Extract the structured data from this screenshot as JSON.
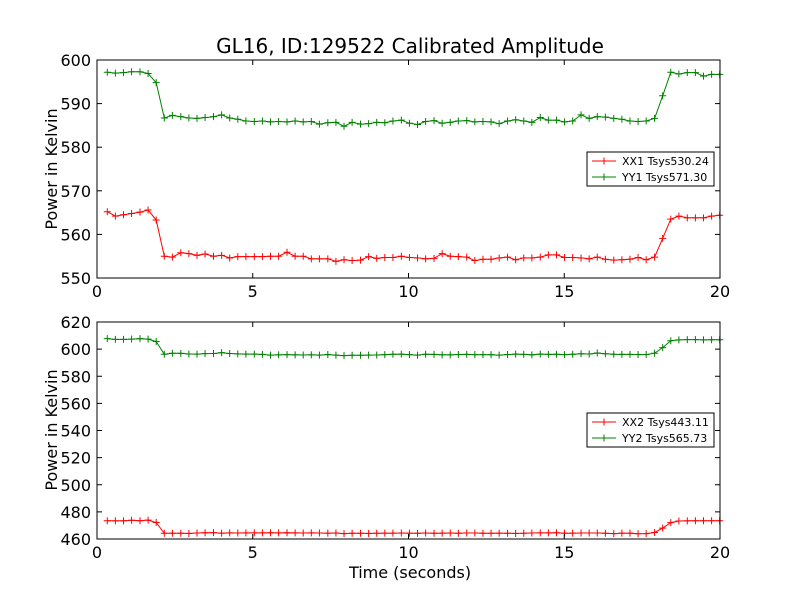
{
  "chart_data": [
    {
      "type": "line",
      "title": "GL16, ID:129522 Calibrated Amplitude",
      "xlabel": "",
      "ylabel": "Power in Kelvin",
      "xlim": [
        0,
        20
      ],
      "ylim": [
        550,
        600
      ],
      "xticks": [
        0,
        5,
        10,
        15,
        20
      ],
      "yticks": [
        550,
        560,
        570,
        580,
        590,
        600
      ],
      "grid": false,
      "legend": "center-right",
      "x": [
        0.33,
        0.59,
        0.85,
        1.11,
        1.38,
        1.64,
        1.9,
        2.16,
        2.42,
        2.69,
        2.95,
        3.21,
        3.47,
        3.74,
        4.0,
        4.26,
        4.52,
        4.78,
        5.05,
        5.31,
        5.57,
        5.83,
        6.1,
        6.36,
        6.62,
        6.88,
        7.14,
        7.41,
        7.67,
        7.93,
        8.19,
        8.46,
        8.72,
        8.98,
        9.24,
        9.5,
        9.77,
        10.03,
        10.29,
        10.55,
        10.82,
        11.08,
        11.34,
        11.6,
        11.87,
        12.13,
        12.39,
        12.65,
        12.91,
        13.18,
        13.44,
        13.7,
        13.96,
        14.23,
        14.49,
        14.75,
        15.01,
        15.27,
        15.54,
        15.8,
        16.06,
        16.32,
        16.59,
        16.85,
        17.11,
        17.37,
        17.63,
        17.9,
        18.16,
        18.42,
        18.68,
        18.95,
        19.21,
        19.47,
        19.73,
        19.99
      ],
      "series": [
        {
          "name": "XX1 Tsys530.24",
          "color": "#ff0000",
          "values": [
            565.2,
            564.2,
            564.5,
            564.8,
            565.1,
            565.6,
            563.3,
            555.0,
            554.8,
            555.8,
            555.6,
            555.2,
            555.5,
            555.0,
            555.2,
            554.6,
            554.9,
            554.9,
            554.9,
            554.9,
            555.0,
            555.0,
            555.9,
            555.0,
            555.0,
            554.4,
            554.4,
            554.4,
            553.8,
            554.2,
            554.0,
            554.1,
            554.9,
            554.5,
            554.7,
            554.7,
            555.0,
            554.7,
            554.6,
            554.4,
            554.5,
            555.6,
            555.0,
            554.9,
            554.8,
            554.0,
            554.3,
            554.3,
            554.6,
            554.8,
            554.2,
            554.6,
            554.6,
            554.8,
            555.3,
            555.3,
            554.7,
            554.7,
            554.6,
            554.4,
            554.8,
            554.3,
            554.1,
            554.2,
            554.3,
            554.7,
            554.2,
            554.8,
            559.1,
            563.5,
            564.2,
            563.8,
            563.8,
            563.8,
            564.2,
            564.4
          ]
        },
        {
          "name": "YY1 Tsys571.30",
          "color": "#008000",
          "values": [
            597.2,
            597.0,
            597.1,
            597.3,
            597.3,
            596.9,
            594.8,
            586.7,
            587.3,
            587.0,
            586.7,
            586.6,
            586.8,
            587.0,
            587.4,
            586.7,
            586.4,
            586.0,
            585.9,
            586.0,
            585.8,
            585.9,
            585.8,
            586.0,
            585.8,
            585.9,
            585.3,
            585.6,
            585.7,
            584.8,
            585.7,
            585.3,
            585.4,
            585.7,
            585.6,
            586.0,
            586.2,
            585.5,
            585.2,
            585.9,
            586.1,
            585.5,
            585.7,
            586.0,
            586.1,
            585.8,
            585.9,
            585.8,
            585.4,
            586.0,
            586.3,
            586.0,
            585.7,
            586.8,
            586.2,
            586.2,
            585.8,
            586.0,
            587.4,
            586.6,
            587.0,
            586.9,
            586.6,
            586.4,
            586.0,
            585.9,
            586.0,
            586.6,
            591.8,
            597.2,
            596.8,
            597.1,
            597.1,
            596.3,
            596.7,
            596.7
          ]
        }
      ]
    },
    {
      "type": "line",
      "title": "",
      "xlabel": "Time (seconds)",
      "ylabel": "Power in Kelvin",
      "xlim": [
        0,
        20
      ],
      "ylim": [
        460,
        620
      ],
      "xticks": [
        0,
        5,
        10,
        15,
        20
      ],
      "yticks": [
        460,
        480,
        500,
        520,
        540,
        560,
        580,
        600,
        620
      ],
      "grid": false,
      "legend": "center-right",
      "x": [
        0.33,
        0.59,
        0.85,
        1.11,
        1.38,
        1.64,
        1.9,
        2.16,
        2.42,
        2.69,
        2.95,
        3.21,
        3.47,
        3.74,
        4.0,
        4.26,
        4.52,
        4.78,
        5.05,
        5.31,
        5.57,
        5.83,
        6.1,
        6.36,
        6.62,
        6.88,
        7.14,
        7.41,
        7.67,
        7.93,
        8.19,
        8.46,
        8.72,
        8.98,
        9.24,
        9.5,
        9.77,
        10.03,
        10.29,
        10.55,
        10.82,
        11.08,
        11.34,
        11.6,
        11.87,
        12.13,
        12.39,
        12.65,
        12.91,
        13.18,
        13.44,
        13.7,
        13.96,
        14.23,
        14.49,
        14.75,
        15.01,
        15.27,
        15.54,
        15.8,
        16.06,
        16.32,
        16.59,
        16.85,
        17.11,
        17.37,
        17.63,
        17.9,
        18.16,
        18.42,
        18.68,
        18.95,
        19.21,
        19.47,
        19.73,
        19.99
      ],
      "series": [
        {
          "name": "XX2 Tsys443.11",
          "color": "#ff0000",
          "values": [
            473.5,
            473.4,
            473.4,
            473.8,
            473.5,
            473.9,
            472.2,
            464.2,
            464.2,
            464.2,
            464.1,
            464.4,
            464.6,
            464.7,
            464.3,
            464.5,
            464.4,
            464.5,
            464.5,
            464.5,
            464.6,
            464.5,
            464.6,
            464.5,
            464.4,
            464.5,
            464.4,
            464.3,
            464.4,
            464.0,
            464.2,
            464.2,
            464.1,
            464.2,
            464.3,
            464.3,
            464.4,
            464.3,
            464.2,
            464.4,
            464.2,
            464.3,
            464.4,
            464.2,
            464.4,
            464.4,
            464.2,
            464.2,
            464.3,
            464.2,
            464.1,
            464.2,
            464.4,
            464.5,
            464.5,
            464.6,
            464.3,
            464.3,
            464.4,
            464.4,
            464.4,
            464.2,
            464.0,
            464.3,
            464.3,
            463.9,
            464.0,
            464.8,
            468.0,
            472.1,
            473.3,
            473.4,
            473.5,
            473.5,
            473.5,
            473.5
          ]
        },
        {
          "name": "YY2 Tsys565.73",
          "color": "#008000",
          "values": [
            607.7,
            607.2,
            607.2,
            607.4,
            607.7,
            607.4,
            605.6,
            596.2,
            597.0,
            596.9,
            596.4,
            596.3,
            596.7,
            596.8,
            597.4,
            596.8,
            596.5,
            596.3,
            596.3,
            596.1,
            595.6,
            595.8,
            595.9,
            595.8,
            595.7,
            595.8,
            595.6,
            596.0,
            595.6,
            595.2,
            595.5,
            595.5,
            595.6,
            595.7,
            595.9,
            596.2,
            596.3,
            595.9,
            595.6,
            596.2,
            596.1,
            595.8,
            595.8,
            596.0,
            596.1,
            595.9,
            595.9,
            595.9,
            595.6,
            596.0,
            596.3,
            596.1,
            595.8,
            596.3,
            596.1,
            596.2,
            595.9,
            596.2,
            596.6,
            596.4,
            597.1,
            596.6,
            596.2,
            596.1,
            596.1,
            596.0,
            596.0,
            597.0,
            601.1,
            606.2,
            606.8,
            607.0,
            607.0,
            606.8,
            606.9,
            606.9
          ]
        }
      ]
    }
  ]
}
